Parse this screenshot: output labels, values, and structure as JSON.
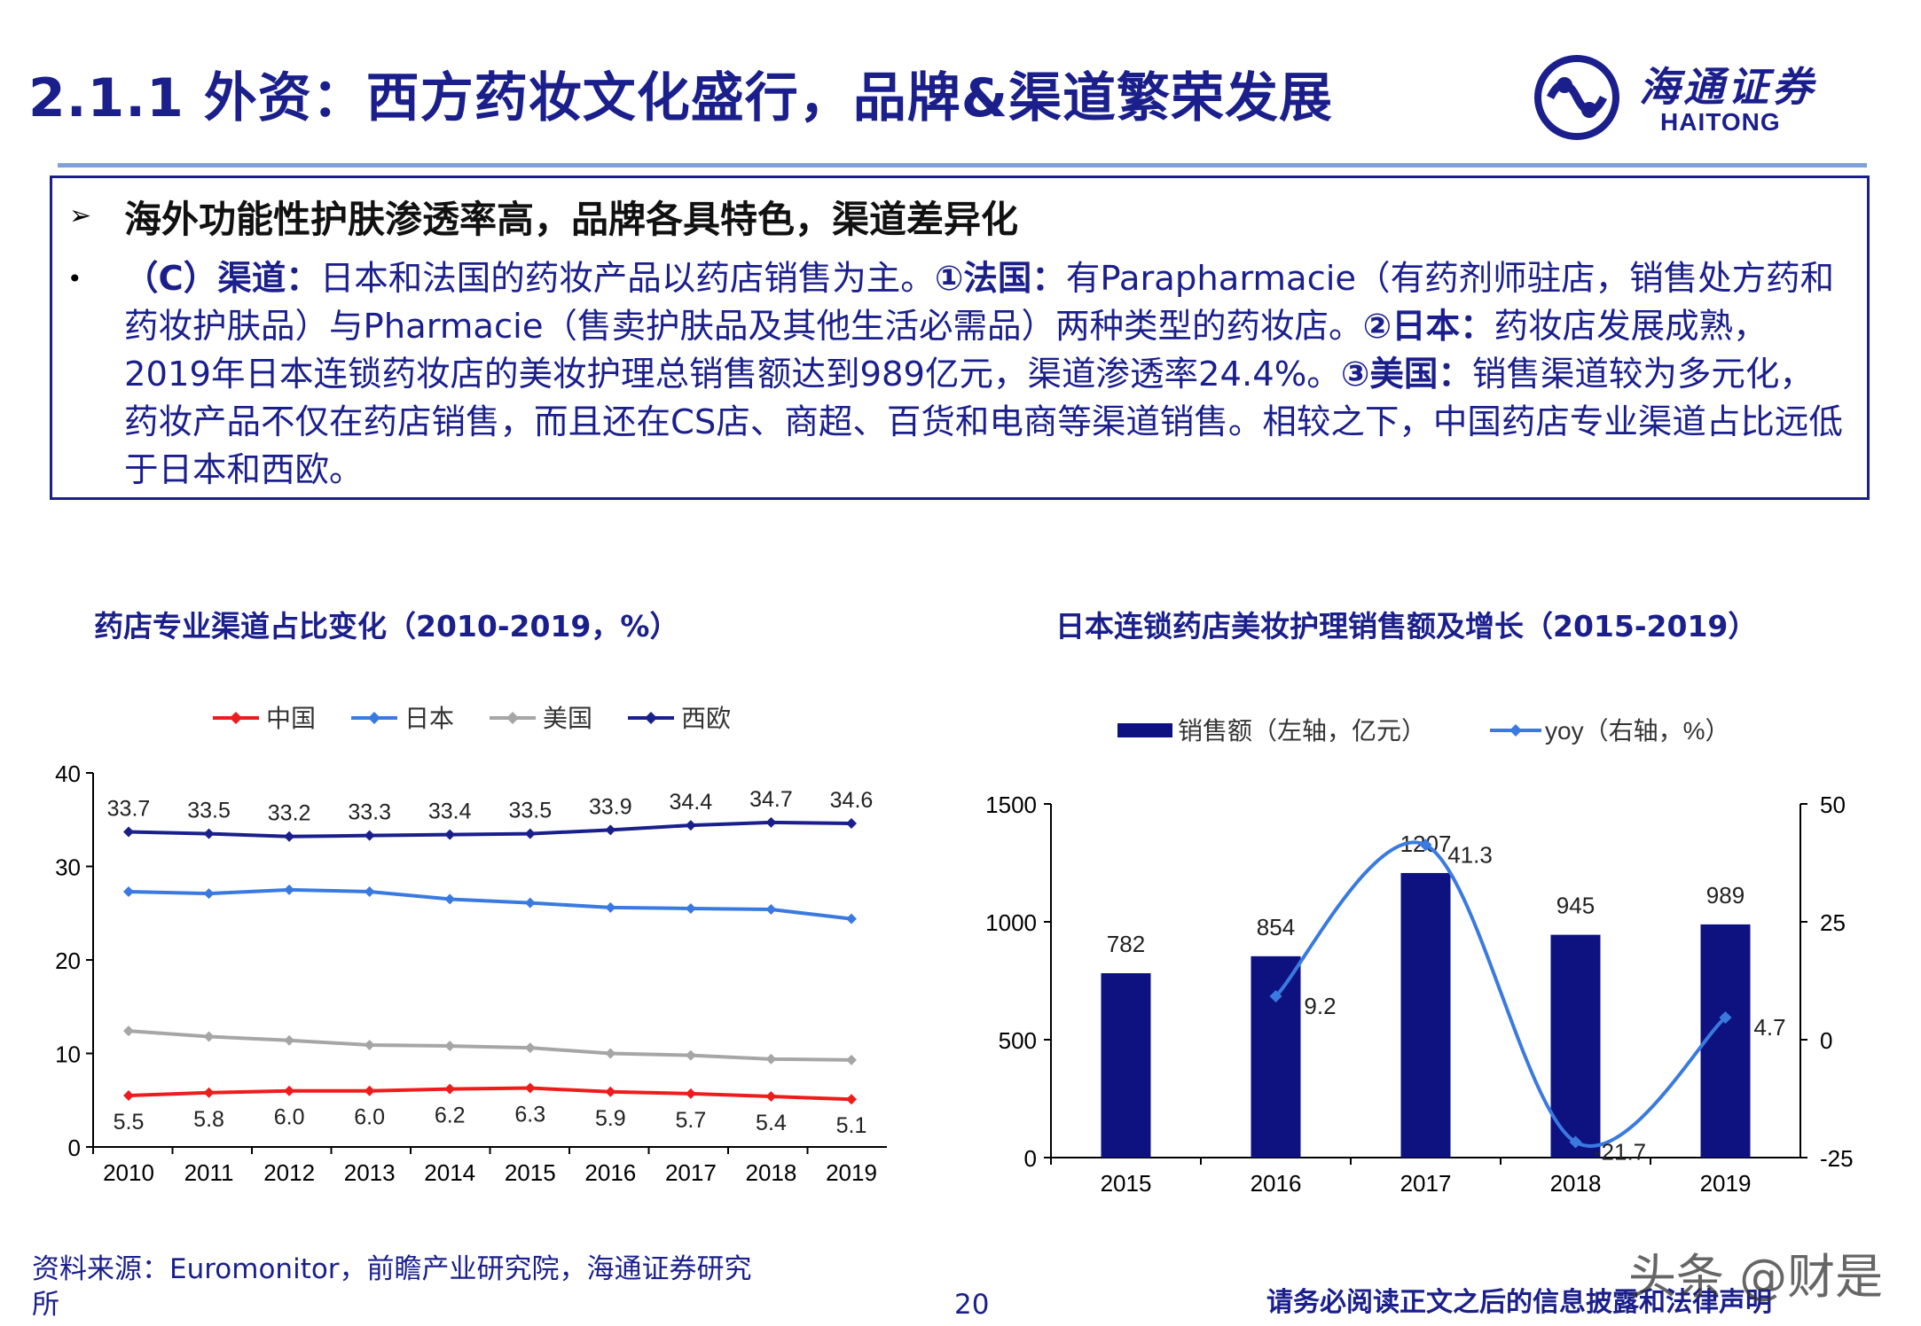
{
  "page": {
    "title": "2.1.1 外资：西方药妆文化盛行，品牌&渠道繁荣发展",
    "logo": {
      "cn": "海通证券",
      "en": "HAITONG"
    },
    "heading": "海外功能性护肤渗透率高，品牌各具特色，渠道差异化",
    "body": {
      "label_channel": "（C）渠道：",
      "t1": "日本和法国的药妆产品以药店销售为主。",
      "label_france": "①法国：",
      "t2": "有Parapharmacie（有药剂师驻店，销售处方药和药妆护肤品）与Pharmacie（售卖护肤品及其他生活必需品）两种类型的药妆店。",
      "label_japan": "②日本：",
      "t3": "药妆店发展成熟，2019年日本连锁药妆店的美妆护理总销售额达到989亿元，渠道渗透率24.4%。",
      "label_us": "③美国：",
      "t4": "销售渠道较为多元化，药妆产品不仅在药店销售，而且还在CS店、商超、百货和电商等渠道销售。相较之下，中国药店专业渠道占比远低于日本和西欧。"
    },
    "source": "资料来源：Euromonitor，前瞻产业研究院，海通证券研究所",
    "page_number": "20",
    "disclaimer": "请务必阅读正文之后的信息披露和法律声明",
    "watermark": "头条 @财是"
  },
  "chart_data": [
    {
      "type": "line",
      "title": "药店专业渠道占比变化（2010-2019，%）",
      "x": [
        "2010",
        "2011",
        "2012",
        "2013",
        "2014",
        "2015",
        "2016",
        "2017",
        "2018",
        "2019"
      ],
      "ylim": [
        0,
        40
      ],
      "yticks": [
        0,
        10,
        20,
        30,
        40
      ],
      "legend": "top",
      "series": [
        {
          "name": "中国",
          "color": "#ee1c1c",
          "values": [
            5.5,
            5.8,
            6.0,
            6.0,
            6.2,
            6.3,
            5.9,
            5.7,
            5.4,
            5.1
          ],
          "labels": true,
          "label_pos": "below"
        },
        {
          "name": "日本",
          "color": "#3a7ae0",
          "values": [
            27.3,
            27.1,
            27.5,
            27.3,
            26.5,
            26.1,
            25.6,
            25.5,
            25.4,
            24.4
          ],
          "labels": false
        },
        {
          "name": "美国",
          "color": "#a6a6a6",
          "values": [
            12.4,
            11.8,
            11.4,
            10.9,
            10.8,
            10.6,
            10.0,
            9.8,
            9.4,
            9.3
          ],
          "labels": false
        },
        {
          "name": "西欧",
          "color": "#1a1f8c",
          "values": [
            33.7,
            33.5,
            33.2,
            33.3,
            33.4,
            33.5,
            33.9,
            34.4,
            34.7,
            34.6
          ],
          "labels": true,
          "label_pos": "above"
        }
      ]
    },
    {
      "type": "bar",
      "title": "日本连锁药店美妆护理销售额及增长（2015-2019）",
      "categories": [
        "2015",
        "2016",
        "2017",
        "2018",
        "2019"
      ],
      "legend": "top",
      "series": [
        {
          "name": "销售额（左轴，亿元）",
          "color": "#0d1280",
          "values": [
            782,
            854,
            1207,
            945,
            989
          ]
        },
        {
          "name": "yoy（右轴，%）",
          "color": "#3a7ae0",
          "type": "line",
          "axis": "right",
          "values": [
            null,
            9.2,
            41.3,
            -21.7,
            4.7
          ]
        }
      ],
      "ylim_left": [
        0,
        1500
      ],
      "yticks_left": [
        0,
        500,
        1000,
        1500
      ],
      "ylim_right": [
        -25,
        50
      ],
      "yticks_right": [
        -25,
        0,
        25,
        50
      ]
    }
  ]
}
